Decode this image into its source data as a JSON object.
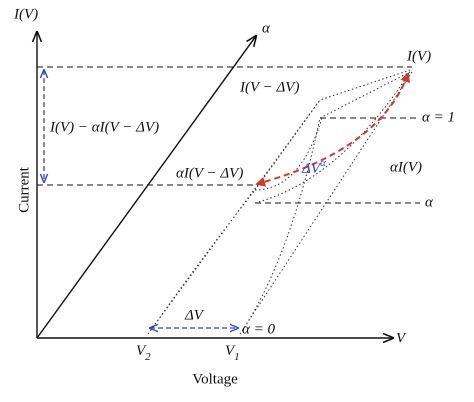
{
  "axes": {
    "y_label": "I(V)",
    "x_label": "V",
    "y_title": "Current",
    "x_title": "Voltage",
    "diagonal_label": "α"
  },
  "labels": {
    "top_curve": "I(V − ΔV)",
    "top_point": "I(V)",
    "alpha_one": "α = 1",
    "left_diff": "I(V) − αI(V − ΔV)",
    "mid_point": "αI(V − ΔV)",
    "delta_v_alpha": {
      "base": "ΔV",
      "sup": "α"
    },
    "alpha_iv": "αI(V)",
    "alpha": "α",
    "delta_v": "ΔV",
    "alpha_zero": "α = 0",
    "v2": {
      "base": "V",
      "sub": "2"
    },
    "v1": {
      "base": "V",
      "sub": "1"
    }
  }
}
